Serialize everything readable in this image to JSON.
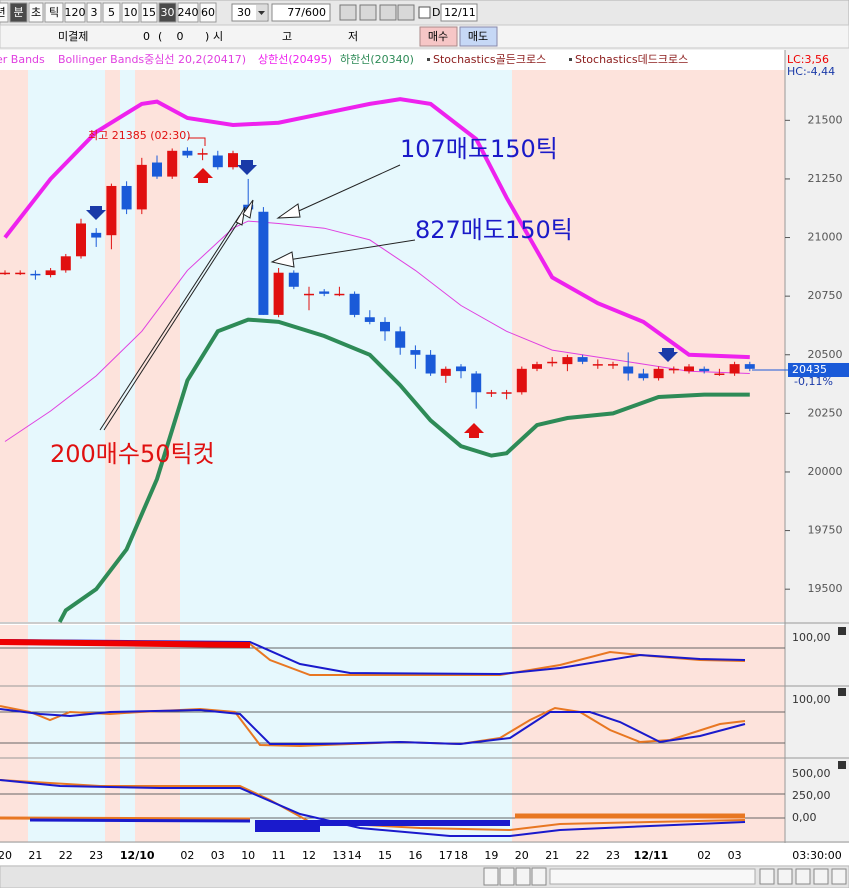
{
  "toolbar": {
    "periods": [
      "년",
      "분",
      "초",
      "틱",
      "120",
      "3",
      "5",
      "10",
      "15",
      "30",
      "240",
      "60"
    ],
    "count": "30",
    "bars": "77/600",
    "d_label": "D",
    "date": "12/11"
  },
  "order_bar": {
    "label": "미결제",
    "qty": "0",
    "paren_open": "(",
    "paren_value": "0",
    "paren_close": ")",
    "open": "시",
    "high": "고",
    "low": "저",
    "buy": "매수",
    "sell": "매도"
  },
  "chart_data": {
    "type": "candlestick",
    "legend_extra": "er Bands",
    "signal_legend": [
      "Stochastics골든크로스",
      "Stochastics데드크로스"
    ],
    "lc": "LC:3,56",
    "hc": "HC:-4,44",
    "high_note": "최고 21385 (02:30)",
    "annotations": [
      "107매도150틱",
      "827매도150틱",
      "200매수50틱컷"
    ],
    "open": [
      20850,
      20850,
      20845,
      20840,
      20860,
      20920,
      21020,
      21010,
      21220,
      21120,
      21320,
      21260,
      21370,
      21360,
      21350,
      21300,
      21140,
      21110,
      20670,
      20850,
      20760,
      20770,
      20760,
      20760,
      20660,
      20640,
      20600,
      20520,
      20500,
      20410,
      20450,
      20420,
      20340,
      20340,
      20340,
      20440,
      20470,
      20460,
      20490,
      20460,
      20460,
      20450,
      20420,
      20400,
      20440,
      20430,
      20440,
      20420,
      20420,
      20460
    ],
    "high": [
      20860,
      20860,
      20860,
      20870,
      20930,
      21080,
      21040,
      21230,
      21240,
      21340,
      21350,
      21380,
      21385,
      21380,
      21370,
      21370,
      21250,
      21130,
      20870,
      20860,
      20790,
      20780,
      20790,
      20770,
      20690,
      20660,
      20620,
      20540,
      20520,
      20450,
      20460,
      20430,
      20350,
      20350,
      20450,
      20470,
      20490,
      20500,
      20500,
      20480,
      20470,
      20510,
      20440,
      20450,
      20450,
      20460,
      20450,
      20440,
      20470,
      20470
    ],
    "low": [
      20840,
      20840,
      20820,
      20830,
      20850,
      20910,
      20960,
      20950,
      21100,
      21100,
      21250,
      21250,
      21340,
      21330,
      21290,
      21290,
      21110,
      20670,
      20660,
      20780,
      20690,
      20750,
      20750,
      20660,
      20630,
      20560,
      20500,
      20440,
      20410,
      20380,
      20400,
      20270,
      20320,
      20310,
      20330,
      20430,
      20450,
      20430,
      20460,
      20440,
      20440,
      20390,
      20390,
      20390,
      20420,
      20420,
      20420,
      20410,
      20410,
      20430
    ],
    "close": [
      20850,
      20850,
      20840,
      20860,
      20920,
      21060,
      21000,
      21220,
      21120,
      21310,
      21260,
      21370,
      21350,
      21360,
      21300,
      21360,
      21120,
      20670,
      20850,
      20790,
      20760,
      20760,
      20760,
      20670,
      20640,
      20600,
      20530,
      20500,
      20420,
      20440,
      20430,
      20340,
      20340,
      20340,
      20440,
      20460,
      20470,
      20490,
      20470,
      20460,
      20460,
      20420,
      20400,
      20440,
      20440,
      20450,
      20430,
      20420,
      20460,
      20440
    ],
    "series": [
      {
        "name": "Bollinger Bands중심선 20,2(20417)",
        "color": "#e040e0",
        "width": 1,
        "x": [
          0,
          3,
          6,
          9,
          12,
          15,
          16,
          18,
          21,
          24,
          27,
          30,
          33,
          36,
          39,
          42,
          45,
          49
        ],
        "values": [
          20130,
          20260,
          20410,
          20600,
          20860,
          21040,
          21070,
          21060,
          21040,
          20990,
          20860,
          20710,
          20600,
          20520,
          20490,
          20460,
          20430,
          20420
        ]
      },
      {
        "name": "상한선(20495)",
        "color": "#ee22ee",
        "width": 4,
        "x": [
          0,
          3,
          6,
          9,
          10,
          12,
          15,
          18,
          21,
          24,
          26,
          28,
          31,
          33,
          36,
          39,
          42,
          45,
          49
        ],
        "values": [
          21000,
          21250,
          21450,
          21570,
          21580,
          21510,
          21480,
          21490,
          21530,
          21570,
          21590,
          21570,
          21420,
          21170,
          20830,
          20720,
          20640,
          20500,
          20490
        ]
      },
      {
        "name": "하한선(20340)",
        "color": "#2e8b57",
        "width": 4,
        "x": [
          3.6,
          4,
          6,
          8,
          10,
          12,
          14,
          16,
          18,
          21,
          24,
          26,
          28,
          30,
          32,
          33,
          35,
          37,
          40,
          43,
          46,
          49
        ],
        "values": [
          19360,
          19410,
          19500,
          19670,
          19970,
          20390,
          20600,
          20650,
          20640,
          20580,
          20500,
          20370,
          20220,
          20110,
          20070,
          20080,
          20200,
          20230,
          20250,
          20320,
          20330,
          20330
        ]
      }
    ],
    "ylim": [
      19360,
      21800
    ],
    "yticks": [
      21500,
      21250,
      21000,
      20750,
      20500,
      20250,
      20000,
      19750,
      19500
    ],
    "current_price": 20435,
    "current_change": "-0,11%",
    "time_labels": [
      "20",
      "21",
      "22",
      "23",
      "12/10",
      "02",
      "03",
      "10",
      "11",
      "12",
      "13",
      "14",
      "15",
      "16",
      "17",
      "18",
      "19",
      "20",
      "21",
      "22",
      "23",
      "12/11",
      "02",
      "03"
    ],
    "time_right": "03:30:00",
    "panel_labels": [
      [
        "100,00"
      ],
      [
        "100,00"
      ],
      [
        "500,00",
        "250,00",
        "0,00"
      ]
    ]
  }
}
